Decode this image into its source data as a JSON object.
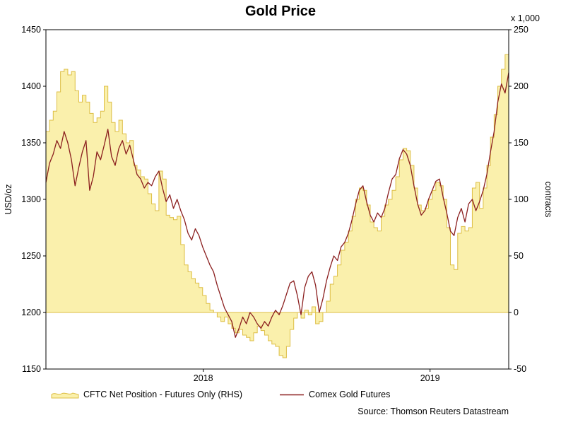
{
  "title": "Gold Price",
  "source": "Source: Thomson Reuters Datastream",
  "colors": {
    "area_fill": "#FAF0AC",
    "area_stroke": "#DDBE45",
    "line_color": "#8B1F1F",
    "frame": "#000000",
    "background": "#FFFFFF"
  },
  "legend": [
    {
      "label": "CFTC Net Position - Futures Only (RHS)",
      "type": "area"
    },
    {
      "label": "Comex Gold Futures",
      "type": "line"
    }
  ],
  "chart_data": {
    "type": "line",
    "title": "Gold Price",
    "grid": false,
    "legend_position": "bottom",
    "baseline_right": 0,
    "left_axis": {
      "label": "USD/oz",
      "min": 1150,
      "max": 1450,
      "ticks": [
        1150,
        1200,
        1250,
        1300,
        1350,
        1400,
        1450
      ]
    },
    "right_axis": {
      "label": "contracts",
      "unit_label": "x 1,000",
      "min": -50,
      "max": 250,
      "ticks": [
        -50,
        0,
        50,
        100,
        150,
        200,
        250
      ]
    },
    "x_axis": {
      "ticks": [
        {
          "label": "2018",
          "position": 0.34
        },
        {
          "label": "2019",
          "position": 0.83
        }
      ]
    },
    "series": [
      {
        "name": "Comex Gold Futures",
        "axis": "left",
        "style": "line",
        "color": "#8B1F1F",
        "values": [
          1315,
          1332,
          1340,
          1352,
          1345,
          1360,
          1350,
          1335,
          1312,
          1328,
          1342,
          1352,
          1308,
          1320,
          1342,
          1335,
          1348,
          1362,
          1338,
          1330,
          1345,
          1352,
          1340,
          1348,
          1335,
          1322,
          1318,
          1310,
          1315,
          1312,
          1320,
          1325,
          1310,
          1298,
          1304,
          1292,
          1300,
          1290,
          1282,
          1270,
          1264,
          1274,
          1268,
          1258,
          1250,
          1242,
          1236,
          1224,
          1214,
          1204,
          1198,
          1192,
          1178,
          1186,
          1196,
          1190,
          1200,
          1196,
          1190,
          1186,
          1192,
          1188,
          1196,
          1202,
          1198,
          1206,
          1216,
          1226,
          1228,
          1215,
          1198,
          1222,
          1232,
          1236,
          1224,
          1200,
          1212,
          1228,
          1240,
          1250,
          1246,
          1258,
          1262,
          1270,
          1282,
          1296,
          1308,
          1312,
          1298,
          1286,
          1280,
          1288,
          1284,
          1292,
          1306,
          1318,
          1322,
          1336,
          1344,
          1340,
          1330,
          1312,
          1296,
          1286,
          1290,
          1300,
          1308,
          1316,
          1318,
          1302,
          1288,
          1272,
          1268,
          1284,
          1292,
          1280,
          1296,
          1300,
          1290,
          1298,
          1308,
          1322,
          1342,
          1360,
          1386,
          1402,
          1394,
          1412
        ]
      },
      {
        "name": "CFTC Net Position - Futures Only (RHS)",
        "axis": "right",
        "style": "step-area",
        "fill": "#FAF0AC",
        "stroke": "#DDBE45",
        "values": [
          160,
          170,
          178,
          195,
          213,
          215,
          210,
          213,
          196,
          186,
          192,
          186,
          176,
          168,
          172,
          178,
          200,
          186,
          168,
          160,
          170,
          158,
          150,
          152,
          130,
          126,
          120,
          118,
          105,
          96,
          90,
          125,
          118,
          86,
          84,
          82,
          85,
          60,
          42,
          36,
          30,
          26,
          22,
          15,
          8,
          2,
          0,
          -4,
          -8,
          -4,
          -10,
          -14,
          -18,
          -15,
          -20,
          -22,
          -25,
          -18,
          -12,
          -16,
          -20,
          -25,
          -28,
          -30,
          -38,
          -40,
          -30,
          -15,
          -5,
          0,
          -5,
          2,
          -2,
          5,
          -10,
          -8,
          0,
          10,
          25,
          32,
          42,
          55,
          62,
          72,
          85,
          100,
          110,
          108,
          95,
          80,
          75,
          72,
          85,
          95,
          100,
          108,
          120,
          135,
          145,
          143,
          130,
          110,
          95,
          90,
          92,
          100,
          108,
          115,
          112,
          100,
          75,
          42,
          38,
          70,
          76,
          72,
          75,
          110,
          115,
          92,
          110,
          130,
          155,
          175,
          200,
          215,
          228,
          237
        ]
      }
    ]
  }
}
